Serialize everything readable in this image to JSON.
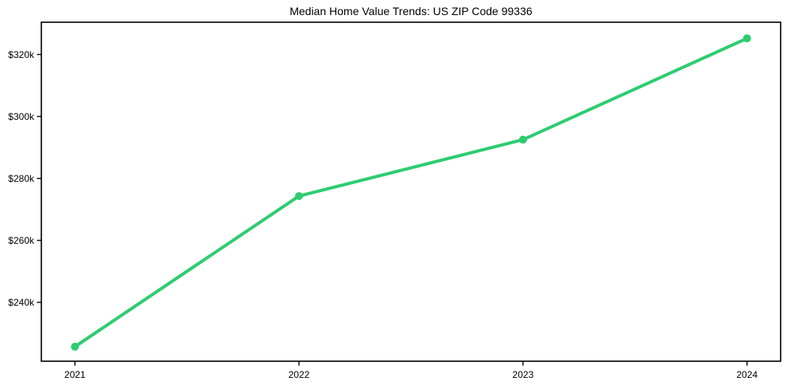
{
  "chart_data": {
    "type": "line",
    "title": "Median Home Value Trends: US ZIP Code 99336",
    "x": [
      2021,
      2022,
      2023,
      2024
    ],
    "x_tick_labels": [
      "2021",
      "2022",
      "2023",
      "2024"
    ],
    "values": [
      225700,
      274300,
      292500,
      325200
    ],
    "y_ticks": [
      240000,
      260000,
      280000,
      300000,
      320000
    ],
    "y_tick_labels": [
      "$240k",
      "$260k",
      "$280k",
      "$300k",
      "$320k"
    ],
    "xlim": [
      2020.85,
      2024.15
    ],
    "ylim": [
      221000,
      330400
    ],
    "grid": false,
    "legend_shown": false,
    "marker": "circle",
    "line_color": "#2ecc71",
    "marker_color": "#2ecc71",
    "axis_color": "#000000",
    "text_color": "#000000",
    "background_color": "#ffffff"
  }
}
